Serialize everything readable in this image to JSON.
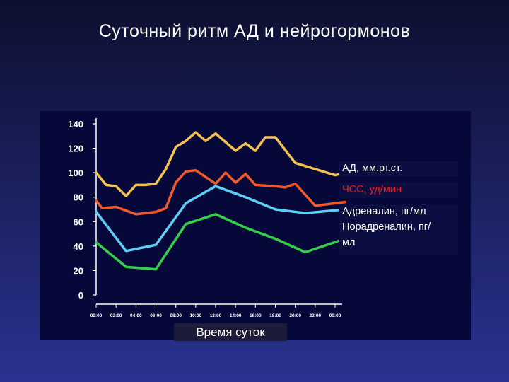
{
  "title": "Суточный ритм АД и нейрогормонов",
  "chart_data": {
    "type": "line",
    "xlabel": "Время суток",
    "ylabel": "",
    "ylim": [
      0,
      140
    ],
    "yticks": [
      0,
      20,
      40,
      60,
      80,
      100,
      120,
      140
    ],
    "x": [
      "00:00",
      "02:00",
      "04:00",
      "06:00",
      "08:00",
      "10:00",
      "12:00",
      "14:00",
      "16:00",
      "18:00",
      "20:00",
      "22:00",
      "00:00"
    ],
    "grid": false,
    "legend": "right",
    "series": [
      {
        "name": "АД, мм.рт.ст.",
        "color": "#f5c24f",
        "points": [
          [
            0,
            100
          ],
          [
            0.5,
            90
          ],
          [
            1,
            89
          ],
          [
            1.5,
            81
          ],
          [
            2,
            90
          ],
          [
            2.5,
            90
          ],
          [
            3,
            91
          ],
          [
            3.5,
            103
          ],
          [
            4,
            121
          ],
          [
            4.5,
            126
          ],
          [
            5,
            133
          ],
          [
            5.5,
            126
          ],
          [
            6,
            132
          ],
          [
            6.5,
            125
          ],
          [
            7,
            118
          ],
          [
            7.5,
            124
          ],
          [
            8,
            118
          ],
          [
            8.5,
            129
          ],
          [
            9,
            129
          ],
          [
            10,
            108
          ],
          [
            11,
            103
          ],
          [
            12,
            98
          ],
          [
            12.5,
            100
          ]
        ]
      },
      {
        "name": "ЧСС, уд/мин",
        "color": "#f05a28",
        "points": [
          [
            0,
            77
          ],
          [
            0.3,
            71
          ],
          [
            1,
            72
          ],
          [
            2,
            66
          ],
          [
            3,
            68
          ],
          [
            3.5,
            71
          ],
          [
            4,
            92
          ],
          [
            4.5,
            101
          ],
          [
            5,
            102
          ],
          [
            6,
            91
          ],
          [
            6.5,
            100
          ],
          [
            7,
            92
          ],
          [
            7.5,
            99
          ],
          [
            8,
            90
          ],
          [
            9,
            89
          ],
          [
            9.5,
            88
          ],
          [
            10,
            91
          ],
          [
            11,
            73
          ],
          [
            12,
            75
          ],
          [
            12.5,
            76
          ]
        ]
      },
      {
        "name": "Адреналин, пг/мл",
        "color": "#5ccff5",
        "points": [
          [
            0,
            68
          ],
          [
            1.5,
            36
          ],
          [
            3,
            41
          ],
          [
            4.5,
            75
          ],
          [
            6,
            89
          ],
          [
            7.5,
            80
          ],
          [
            9,
            70
          ],
          [
            10.5,
            67
          ],
          [
            12.5,
            70
          ]
        ]
      },
      {
        "name": "Норадреналин, пг/мл",
        "color": "#33d04a",
        "points": [
          [
            0,
            43
          ],
          [
            1.5,
            23
          ],
          [
            3,
            21
          ],
          [
            4.5,
            58
          ],
          [
            6,
            66
          ],
          [
            7.5,
            55
          ],
          [
            9,
            46
          ],
          [
            10.5,
            35
          ],
          [
            12.5,
            46
          ]
        ]
      }
    ]
  }
}
